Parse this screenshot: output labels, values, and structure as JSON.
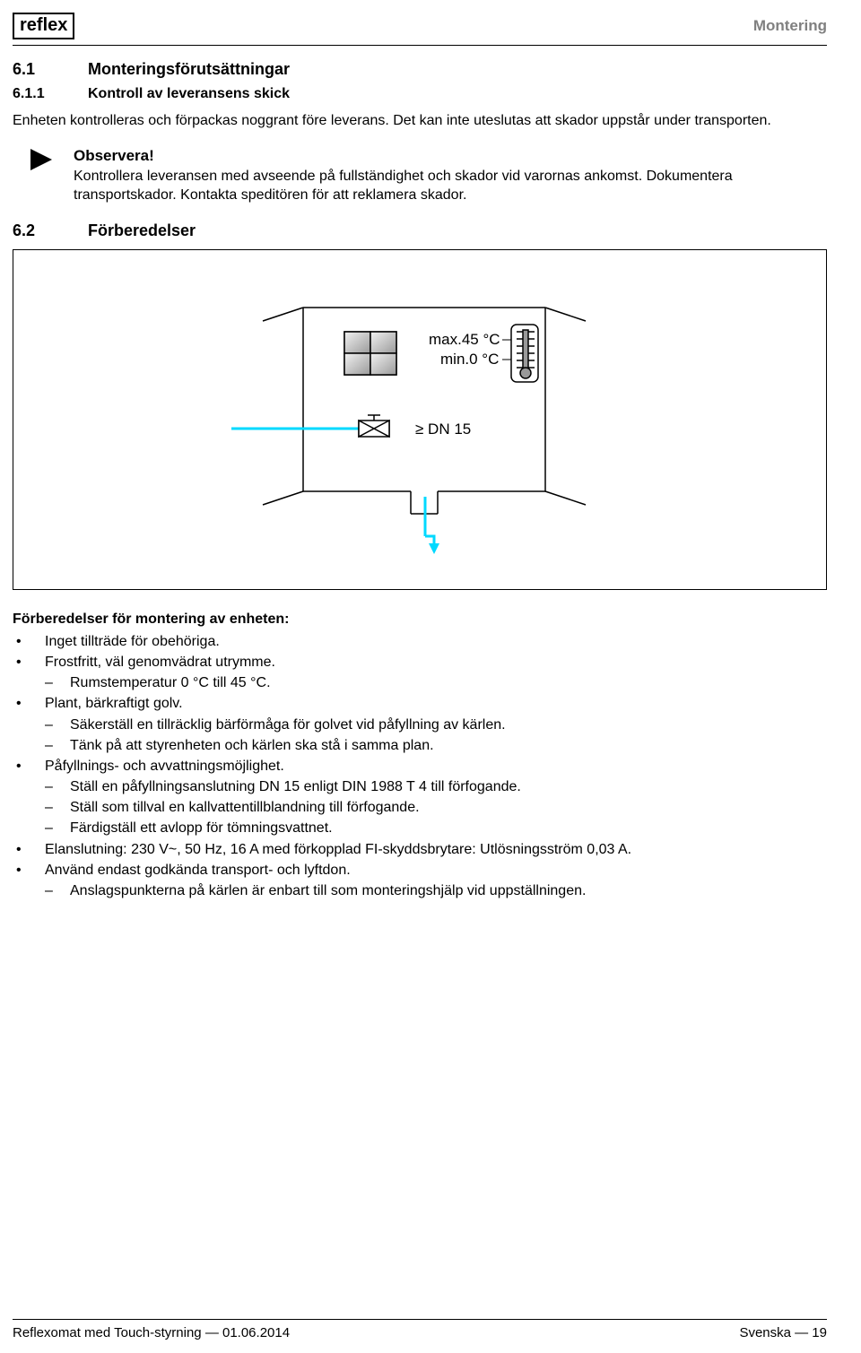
{
  "header": {
    "logo_text": "reflex",
    "section_label": "Montering"
  },
  "section_6_1": {
    "num": "6.1",
    "title": "Monteringsförutsättningar"
  },
  "section_6_1_1": {
    "num": "6.1.1",
    "title": "Kontroll av leveransens skick"
  },
  "intro_paragraph": "Enheten kontrolleras och förpackas noggrant före leverans. Det kan inte uteslutas att skador uppstår under transporten.",
  "note": {
    "title": "Observera!",
    "body": "Kontrollera leveransen med avseende på fullständighet och skador vid varornas ankomst. Dokumentera transportskador. Kontakta speditören för att reklamera skador."
  },
  "section_6_2": {
    "num": "6.2",
    "title": "Förberedelser"
  },
  "diagram": {
    "temp_max_label": "max.45 °C",
    "temp_min_label": "min.0 °C",
    "pipe_label": "≥ DN 15",
    "colors": {
      "line": "#000000",
      "pipe_cyan": "#00d9ff",
      "grid_fill_light": "#e6e6e6",
      "grid_fill_dark": "#b3b3b3",
      "therm_fill": "#cccccc"
    }
  },
  "prep_title": "Förberedelser för montering av enheten:",
  "prep_items": [
    {
      "text": "Inget tillträde för obehöriga."
    },
    {
      "text": "Frostfritt, väl genomvädrat utrymme.",
      "sub": [
        "Rumstemperatur 0 °C till 45 °C."
      ]
    },
    {
      "text": "Plant, bärkraftigt golv.",
      "sub": [
        "Säkerställ en tillräcklig bärförmåga för golvet vid påfyllning av kärlen.",
        "Tänk på att styrenheten och kärlen ska stå i samma plan."
      ]
    },
    {
      "text": "Påfyllnings- och avvattningsmöjlighet.",
      "sub": [
        "Ställ en påfyllningsanslutning DN 15 enligt DIN 1988 T 4 till förfogande.",
        "Ställ som tillval en kallvattentillblandning till förfogande.",
        "Färdigställ ett avlopp för tömningsvattnet."
      ]
    },
    {
      "text": "Elanslutning: 230 V~, 50 Hz, 16 A med förkopplad FI-skyddsbrytare: Utlösningsström 0,03 A."
    },
    {
      "text": "Använd endast godkända transport- och lyftdon.",
      "sub": [
        "Anslagspunkterna på kärlen är enbart till som monteringshjälp vid uppställningen."
      ]
    }
  ],
  "footer": {
    "left": "Reflexomat med Touch-styrning — 01.06.2014",
    "right": "Svenska  —  19"
  }
}
